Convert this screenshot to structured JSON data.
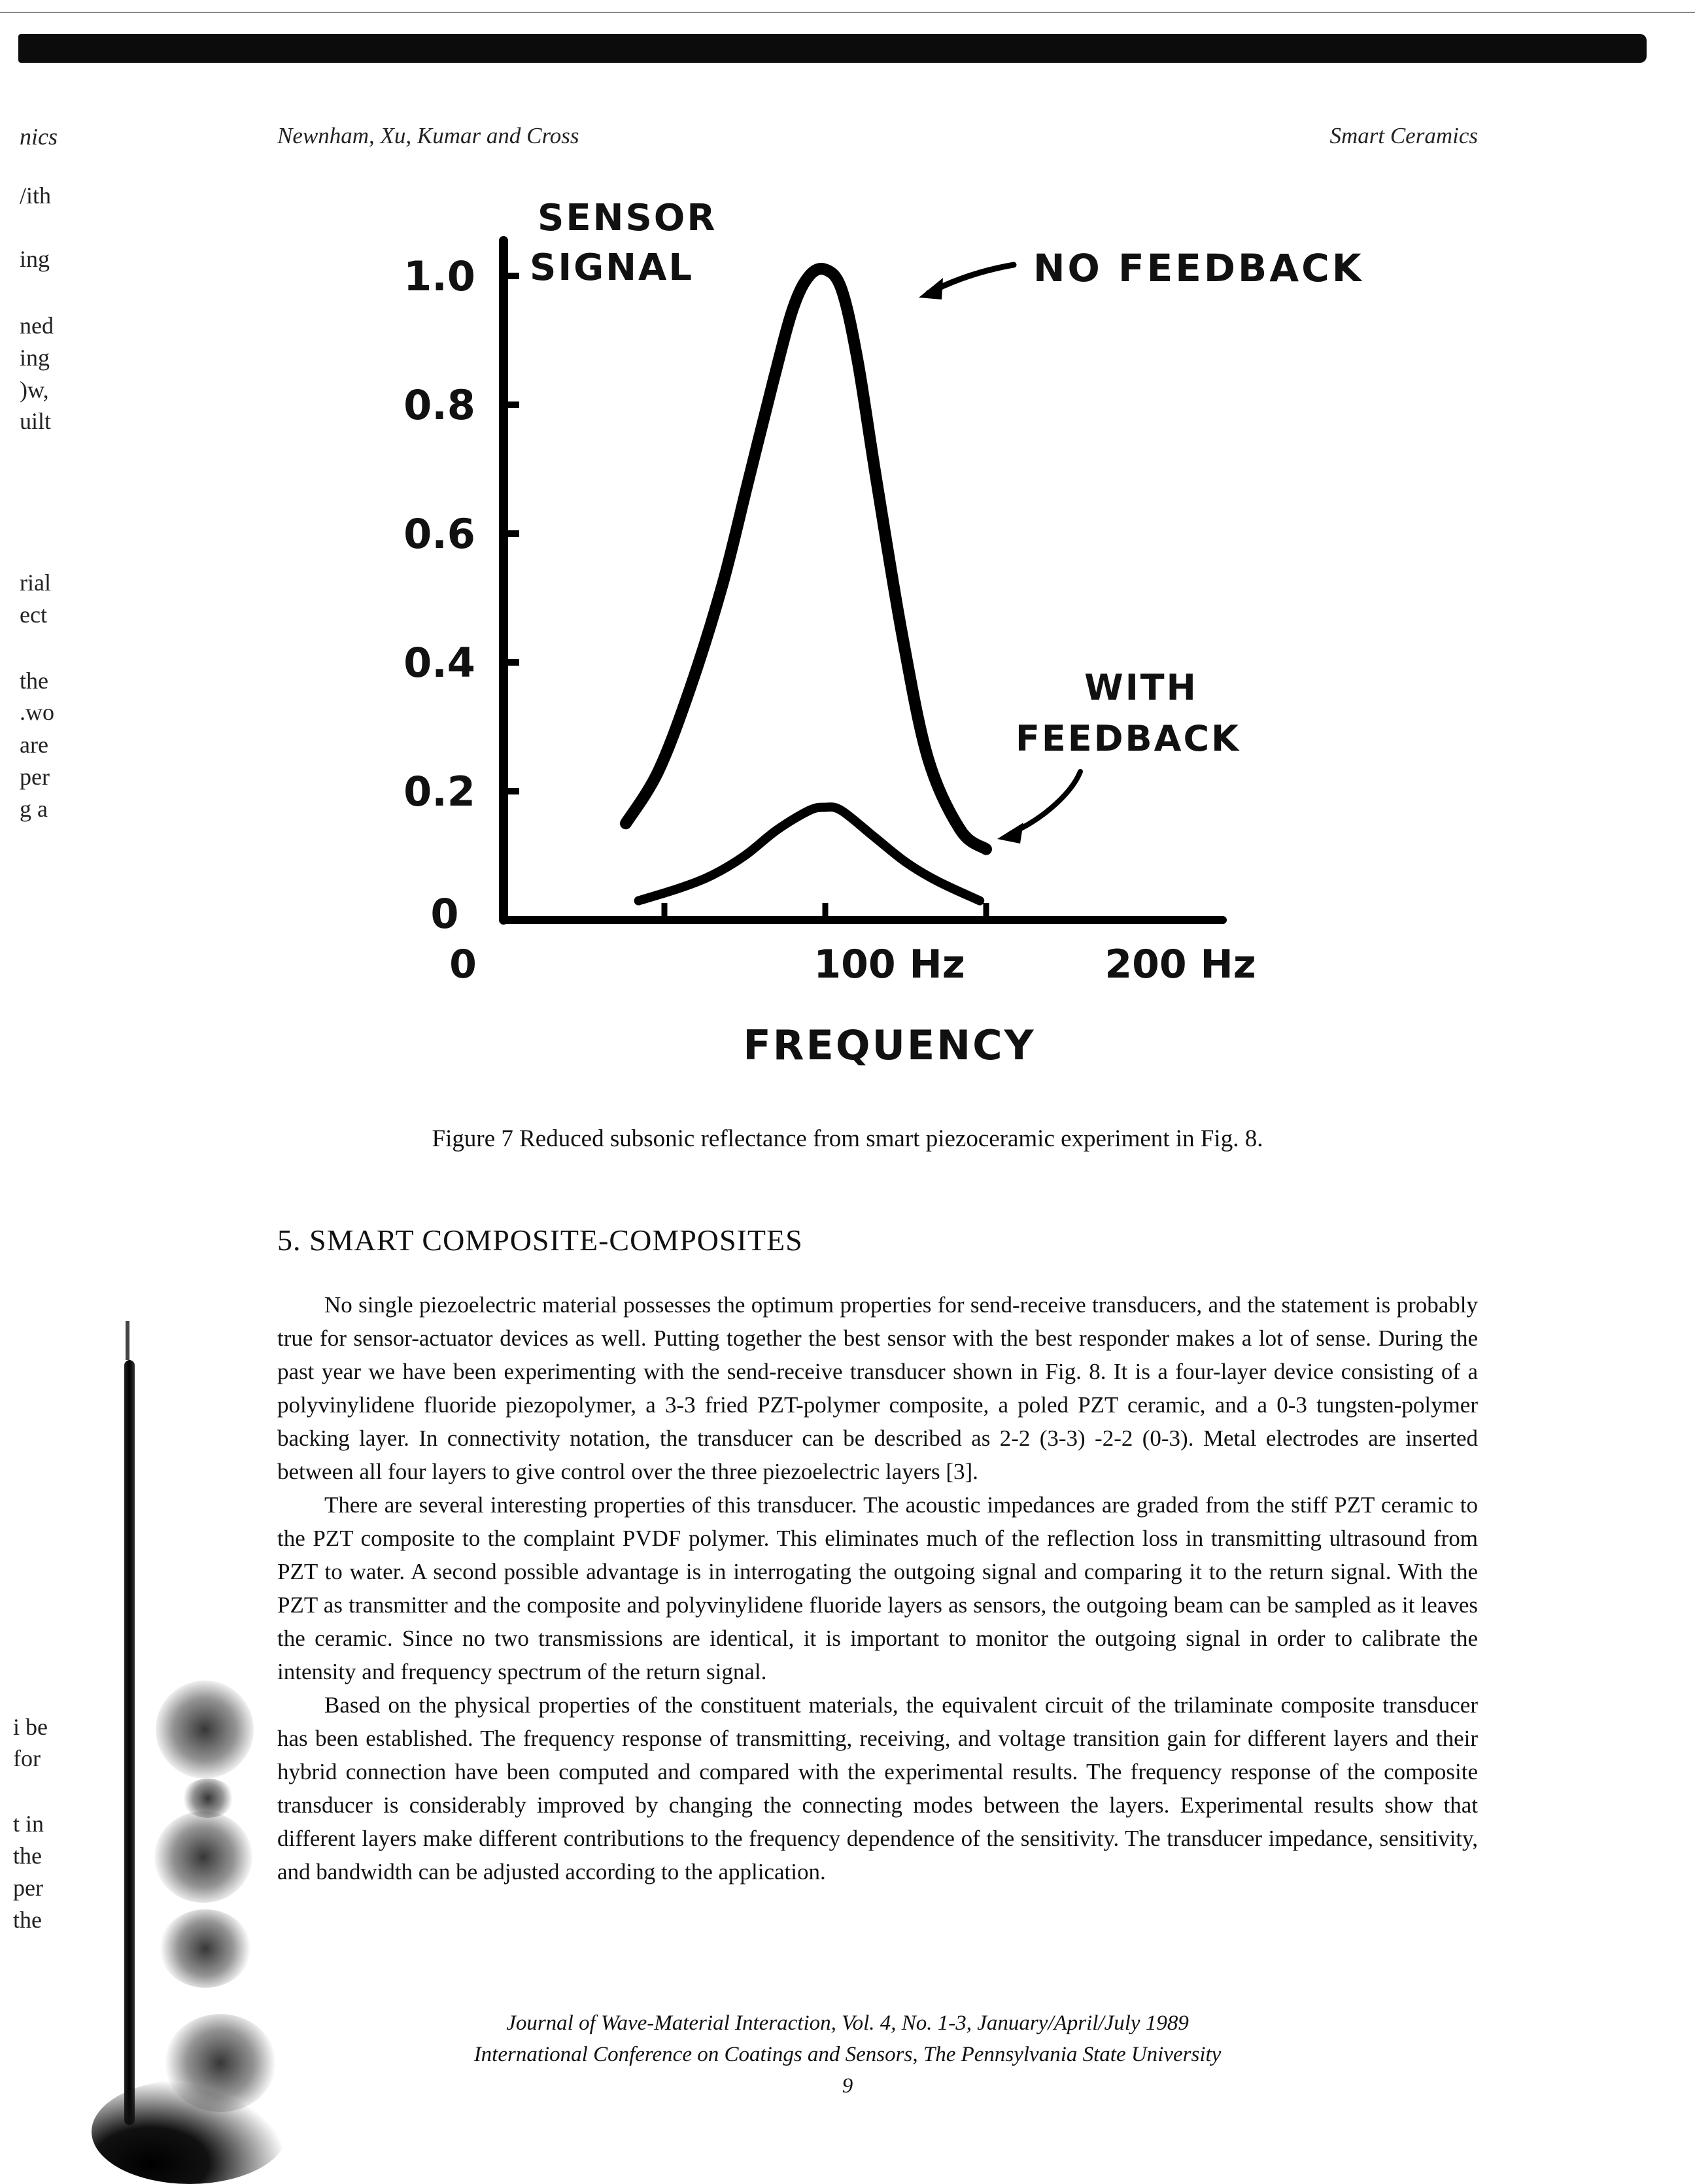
{
  "margin_fragments": {
    "top": [
      "nics",
      "/ith",
      "ing",
      "ned",
      "ing",
      ")w,",
      "uilt",
      "rial",
      "ect",
      "the",
      ".wo",
      "are",
      "per",
      "g a"
    ],
    "bottom": [
      "i be",
      "for",
      "t in",
      "the",
      "per",
      "the"
    ]
  },
  "header": {
    "authors": "Newnham, Xu, Kumar and Cross",
    "running_title": "Smart Ceramics"
  },
  "figure": {
    "ylabel_line1": "SENSOR",
    "ylabel_line2": "SIGNAL",
    "xlabel": "FREQUENCY",
    "ytick_labels": [
      "0",
      "0.2",
      "0.4",
      "0.6",
      "0.8",
      "1.0"
    ],
    "xtick_labels": [
      "0",
      "100 Hz",
      "200 Hz"
    ],
    "annot_no_feedback": "NO FEEDBACK",
    "annot_with_feedback_line1": "WITH",
    "annot_with_feedback_line2": "FEEDBACK",
    "caption": "Figure 7  Reduced subsonic reflectance from smart piezoceramic experiment in Fig. 8."
  },
  "chart_data": {
    "type": "line",
    "xlabel": "FREQUENCY",
    "ylabel": "SENSOR SIGNAL",
    "xlim": [
      0,
      200
    ],
    "ylim": [
      0,
      1.05
    ],
    "x_unit": "Hz",
    "yticks": [
      0,
      0.2,
      0.4,
      0.6,
      0.8,
      1.0
    ],
    "xticks": [
      0,
      50,
      100,
      150,
      200
    ],
    "grid": false,
    "legend": "none",
    "series": [
      {
        "name": "NO FEEDBACK",
        "x": [
          38,
          48,
          58,
          68,
          76,
          84,
          90,
          95,
          100,
          105,
          110,
          116,
          124,
          132,
          142,
          150
        ],
        "y": [
          0.15,
          0.23,
          0.36,
          0.52,
          0.68,
          0.84,
          0.95,
          1.0,
          1.01,
          0.98,
          0.87,
          0.68,
          0.44,
          0.25,
          0.14,
          0.11
        ]
      },
      {
        "name": "WITH FEEDBACK",
        "x": [
          42,
          55,
          65,
          75,
          85,
          95,
          100,
          105,
          115,
          125,
          135,
          148
        ],
        "y": [
          0.03,
          0.05,
          0.07,
          0.1,
          0.14,
          0.17,
          0.175,
          0.17,
          0.13,
          0.09,
          0.06,
          0.03
        ]
      }
    ]
  },
  "section": {
    "title": "5. SMART COMPOSITE-COMPOSITES",
    "paragraphs": [
      "No single piezoelectric material possesses the optimum properties for send-receive transducers, and the statement is probably true for sensor-actuator devices as well.  Putting together the best sensor with the best responder makes a lot of sense.  During the past year we have been experimenting with the send-receive transducer shown in Fig. 8.  It is a four-layer device consisting of a polyvinylidene fluoride piezopolymer, a 3-3 fried PZT-polymer composite, a poled PZT ceramic, and a 0-3 tungsten-polymer backing layer.  In connectivity notation, the transducer can be described as 2-2 (3-3) -2-2 (0-3).  Metal electrodes are inserted between all four layers to give control over the three piezoelectric layers [3].",
      "There are several interesting properties of this transducer.  The acoustic impedances are graded from the stiff PZT ceramic to the PZT composite to the complaint PVDF polymer.  This eliminates much of the reflection loss in transmitting ultrasound from PZT to water.  A second possible advantage is in interrogating the outgoing signal and comparing it to the return signal.  With the PZT as transmitter and the composite and polyvinylidene fluoride layers as sensors, the outgoing beam can be sampled as it leaves the ceramic.  Since no two transmissions are identical, it is important to monitor the outgoing signal in order to calibrate the intensity and frequency spectrum of the return signal.",
      "Based on the physical properties of the constituent materials, the equivalent circuit of the trilaminate composite transducer has been established.  The frequency response of transmitting, receiving, and voltage transition gain  for different layers and their hybrid connection have been computed and compared with the experimental results.  The frequency response of the composite transducer is considerably improved by changing the connecting modes between the layers.  Experimental results show that different layers make different contributions to the frequency dependence of the sensitivity.  The transducer impedance, sensitivity, and bandwidth can be adjusted according to the application."
    ]
  },
  "footer": {
    "line1": "Journal of Wave-Material Interaction, Vol. 4, No. 1-3, January/April/July 1989",
    "line2": "International Conference on Coatings and Sensors, The Pennsylvania State University",
    "page_number": "9"
  }
}
